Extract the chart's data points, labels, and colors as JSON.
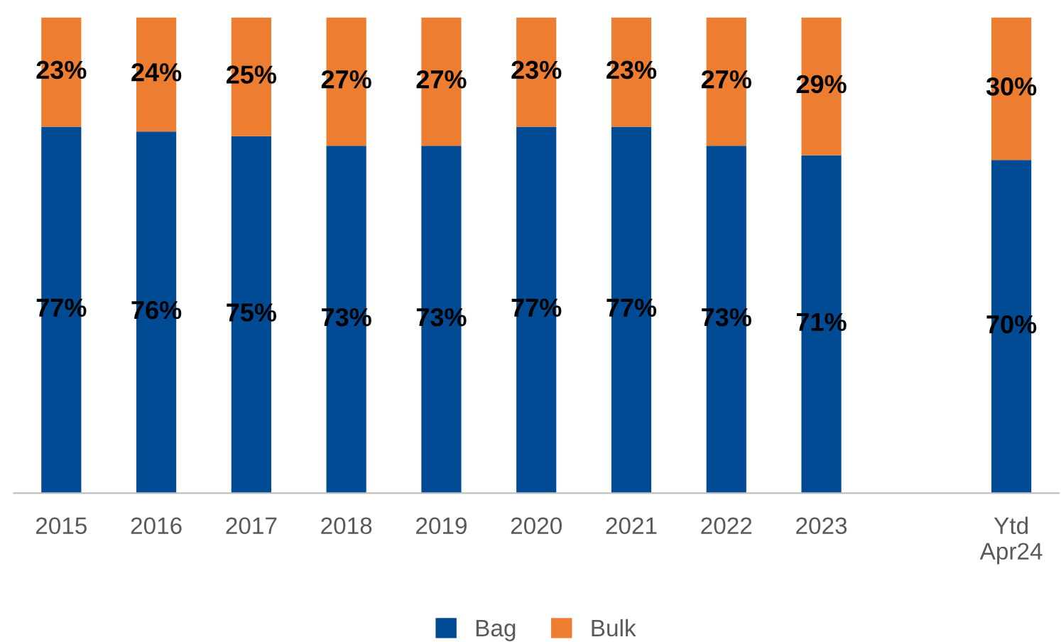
{
  "chart_data": {
    "type": "bar",
    "stacked": true,
    "legend": "bottom",
    "grid": false,
    "categories": [
      "2015",
      "2016",
      "2017",
      "2018",
      "2019",
      "2020",
      "2021",
      "2022",
      "2023",
      null,
      "Ytd\nApr24"
    ],
    "series": [
      {
        "name": "Bag",
        "color": "#004b93",
        "values": [
          77,
          76,
          75,
          73,
          73,
          77,
          77,
          73,
          71,
          null,
          70
        ],
        "value_labels": [
          "77%",
          "76%",
          "75%",
          "73%",
          "73%",
          "77%",
          "77%",
          "73%",
          "71%",
          null,
          "70%"
        ]
      },
      {
        "name": "Bulk",
        "color": "#ed7d31",
        "values": [
          23,
          24,
          25,
          27,
          27,
          23,
          23,
          27,
          29,
          null,
          30
        ],
        "value_labels": [
          "23%",
          "24%",
          "25%",
          "27%",
          "27%",
          "23%",
          "23%",
          "27%",
          "29%",
          null,
          "30%"
        ]
      }
    ]
  }
}
